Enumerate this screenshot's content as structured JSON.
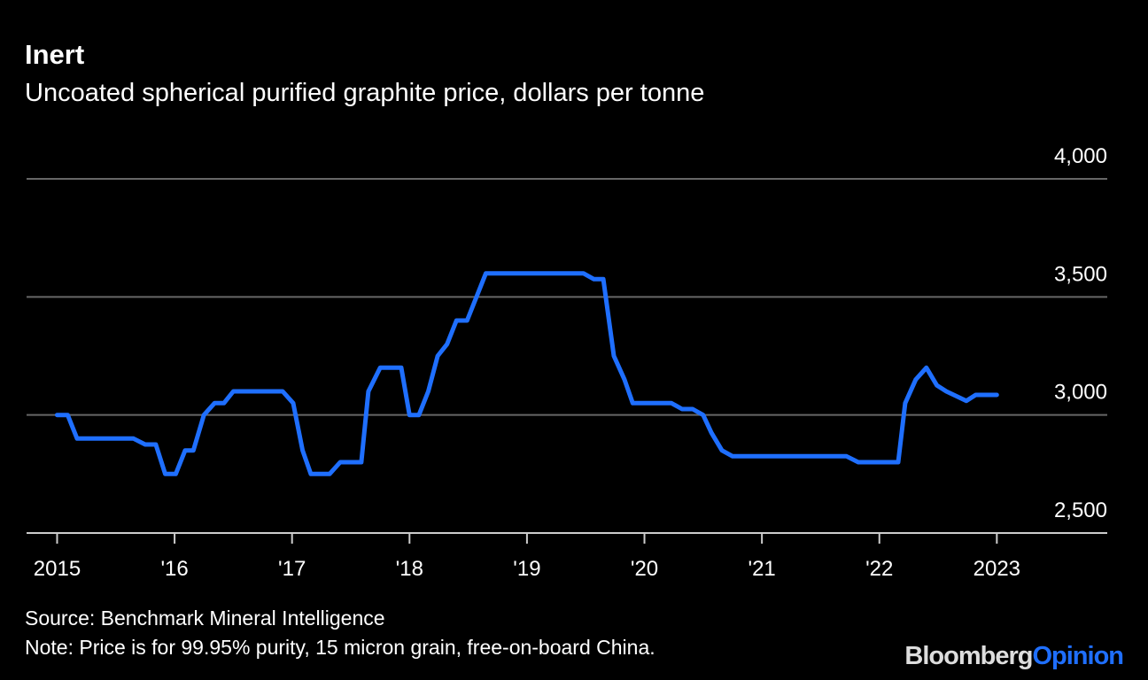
{
  "chart_data": {
    "type": "line",
    "title": "Inert",
    "subtitle": "Uncoated spherical purified graphite price, dollars per tonne",
    "source": "Source: Benchmark Mineral Intelligence",
    "note": "Note: Price is for 99.95% purity, 15 micron grain, free-on-board China.",
    "x": [
      2015.0,
      2015.09,
      2015.17,
      2015.65,
      2015.75,
      2015.84,
      2015.92,
      2016.01,
      2016.09,
      2016.16,
      2016.25,
      2016.34,
      2016.42,
      2016.5,
      2016.92,
      2017.01,
      2017.09,
      2017.16,
      2017.32,
      2017.41,
      2017.59,
      2017.65,
      2017.75,
      2017.93,
      2018.0,
      2018.08,
      2018.16,
      2018.24,
      2018.32,
      2018.4,
      2018.49,
      2018.65,
      2019.48,
      2019.57,
      2019.65,
      2019.74,
      2019.83,
      2019.9,
      2020.23,
      2020.32,
      2020.41,
      2020.5,
      2020.57,
      2020.66,
      2020.75,
      2021.72,
      2021.82,
      2022.16,
      2022.22,
      2022.31,
      2022.4,
      2022.49,
      2022.57,
      2022.74,
      2022.82,
      2023.0
    ],
    "series": [
      {
        "color": "#1f6fff",
        "values": [
          3000,
          3000,
          2900,
          2900,
          2875,
          2875,
          2750,
          2750,
          2850,
          2850,
          3000,
          3050,
          3050,
          3100,
          3100,
          3050,
          2850,
          2750,
          2750,
          2800,
          2800,
          3100,
          3200,
          3200,
          3000,
          3000,
          3100,
          3250,
          3300,
          3400,
          3400,
          3600,
          3600,
          3575,
          3575,
          3250,
          3150,
          3050,
          3050,
          3025,
          3025,
          3000,
          2925,
          2850,
          2825,
          2825,
          2800,
          2800,
          3050,
          3150,
          3200,
          3125,
          3100,
          3060,
          3085,
          3085
        ]
      }
    ],
    "xlim": [
      2014.74,
      2023.94
    ],
    "xticks": [
      2015,
      {
        "value": 2016,
        "label": "'16"
      },
      {
        "value": 2017,
        "label": "'17"
      },
      {
        "value": 2018,
        "label": "'18"
      },
      {
        "value": 2019,
        "label": "'19"
      },
      {
        "value": 2020,
        "label": "'20"
      },
      {
        "value": 2021,
        "label": "'21"
      },
      {
        "value": 2022,
        "label": "'22"
      },
      2023
    ],
    "ylim": [
      2500,
      4000
    ],
    "yticks": [
      {
        "value": 2500,
        "label": "2,500"
      },
      {
        "value": 3000,
        "label": "3,000"
      },
      {
        "value": 3500,
        "label": "3,500"
      },
      {
        "value": 4000,
        "label": "4,000"
      }
    ],
    "grid": true
  },
  "branding": {
    "name": "Bloomberg",
    "section": "Opinion"
  }
}
